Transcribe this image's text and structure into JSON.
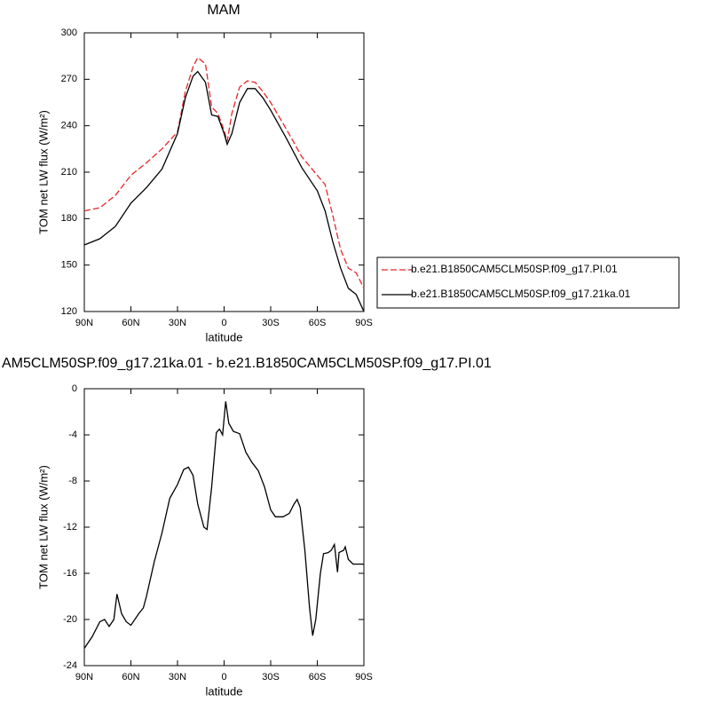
{
  "chart_data": [
    {
      "type": "line",
      "title": "MAM",
      "xlabel": "latitude",
      "ylabel": "TOM net LW flux (W/m²)",
      "xlim": [
        90,
        -90
      ],
      "xticks": [
        {
          "value": 90,
          "label": "90N"
        },
        {
          "value": 60,
          "label": "60N"
        },
        {
          "value": 30,
          "label": "30N"
        },
        0,
        {
          "value": -30,
          "label": "30S"
        },
        {
          "value": -60,
          "label": "60S"
        },
        {
          "value": -90,
          "label": "90S"
        }
      ],
      "ylim": [
        120,
        300
      ],
      "yticks": [
        120,
        150,
        180,
        210,
        240,
        270,
        300
      ],
      "legend": "right",
      "x": [
        90,
        80,
        70,
        60,
        50,
        40,
        30,
        25,
        20,
        17,
        12,
        8,
        4,
        0,
        -2,
        -5,
        -10,
        -15,
        -20,
        -25,
        -30,
        -40,
        -50,
        -60,
        -65,
        -70,
        -75,
        -80,
        -85,
        -90
      ],
      "series": [
        {
          "name": "b.e21.B1850CAM5CLM50SP.f09_g17.PI.01",
          "color": "#e8262a",
          "line_style": "dashed",
          "values": [
            185,
            187,
            195,
            208,
            216,
            225,
            236,
            262,
            278,
            284,
            280,
            252,
            248,
            237,
            230,
            248,
            265,
            269,
            268,
            262,
            255,
            238,
            220,
            208,
            202,
            182,
            160,
            148,
            145,
            135
          ]
        },
        {
          "name": "b.e21.B1850CAM5CLM50SP.f09_g17.21ka.01",
          "color": "#000000",
          "line_style": "solid",
          "values": [
            163,
            167,
            175,
            190,
            200,
            212,
            235,
            258,
            272,
            275,
            268,
            247,
            246,
            235,
            228,
            235,
            255,
            264,
            264,
            258,
            250,
            232,
            213,
            198,
            185,
            165,
            148,
            135,
            131,
            120
          ]
        }
      ]
    },
    {
      "type": "line",
      "title": "AM5CLM50SP.f09_g17.21ka.01 - b.e21.B1850CAM5CLM50SP.f09_g17.PI.01",
      "xlabel": "latitude",
      "ylabel": "TOM net LW flux (W/m²)",
      "xlim": [
        90,
        -90
      ],
      "xticks": [
        {
          "value": 90,
          "label": "90N"
        },
        {
          "value": 60,
          "label": "60N"
        },
        {
          "value": 30,
          "label": "30N"
        },
        0,
        {
          "value": -30,
          "label": "30S"
        },
        {
          "value": -60,
          "label": "60S"
        },
        {
          "value": -90,
          "label": "90S"
        }
      ],
      "ylim": [
        -24,
        0
      ],
      "yticks": [
        -24,
        -20,
        -16,
        -12,
        -8,
        -4,
        0
      ],
      "x": [
        90,
        85,
        80,
        77,
        74,
        71,
        69,
        66,
        63,
        60,
        55,
        52,
        50,
        45,
        40,
        35,
        30,
        26,
        23,
        20,
        17,
        13,
        11,
        8,
        5,
        3,
        1,
        -1,
        -3,
        -6,
        -10,
        -14,
        -18,
        -22,
        -26,
        -30,
        -33,
        -38,
        -42,
        -45,
        -47,
        -49,
        -52,
        -55,
        -57,
        -59,
        -62,
        -64,
        -67,
        -69,
        -71,
        -73,
        -74,
        -77,
        -78,
        -80,
        -83,
        -90
      ],
      "series": [
        {
          "color": "#000000",
          "line_style": "solid",
          "values": [
            -22.5,
            -21.5,
            -20.2,
            -20.0,
            -20.6,
            -20,
            -17.8,
            -19.5,
            -20.2,
            -20.5,
            -19.5,
            -19,
            -18,
            -15,
            -12.5,
            -9.5,
            -8.3,
            -7,
            -6.8,
            -7.5,
            -10,
            -12,
            -12.2,
            -8.5,
            -3.8,
            -3.5,
            -4,
            -1.1,
            -3,
            -3.7,
            -3.9,
            -5.5,
            -6.4,
            -7.1,
            -8.5,
            -10.5,
            -11.1,
            -11.1,
            -10.8,
            -10,
            -9.6,
            -10.3,
            -14,
            -19,
            -21.4,
            -20,
            -16,
            -14.3,
            -14.2,
            -14,
            -13.5,
            -15.9,
            -14.2,
            -14,
            -13.7,
            -14.8,
            -15.2,
            -15.2
          ]
        }
      ]
    }
  ]
}
